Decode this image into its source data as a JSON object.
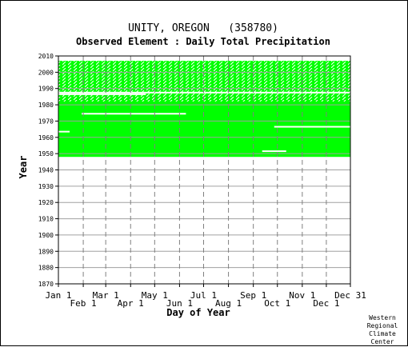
{
  "chart_data": {
    "type": "heatmap",
    "title": "UNITY, OREGON   (358780)",
    "subtitle": "Observed Element : Daily Total Precipitation",
    "xlabel": "Day of Year",
    "ylabel": "Year",
    "xlim": [
      1,
      365
    ],
    "ylim": [
      1870,
      2010
    ],
    "x_ticks_upper": [
      {
        "label": "Jan 1",
        "day": 1
      },
      {
        "label": "Mar 1",
        "day": 60
      },
      {
        "label": "May 1",
        "day": 121
      },
      {
        "label": "Jul 1",
        "day": 182
      },
      {
        "label": "Sep 1",
        "day": 244
      },
      {
        "label": "Nov 1",
        "day": 305
      },
      {
        "label": "Dec 31",
        "day": 365
      }
    ],
    "x_ticks_lower": [
      {
        "label": "Feb 1",
        "day": 32
      },
      {
        "label": "Apr 1",
        "day": 91
      },
      {
        "label": "Jun 1",
        "day": 152
      },
      {
        "label": "Aug 1",
        "day": 213
      },
      {
        "label": "Oct 1",
        "day": 274
      },
      {
        "label": "Dec 1",
        "day": 335
      }
    ],
    "y_ticks": [
      1870,
      1880,
      1890,
      1900,
      1910,
      1920,
      1930,
      1940,
      1950,
      1960,
      1970,
      1980,
      1990,
      2000,
      2010
    ],
    "grid": true,
    "color_observed": "#00ff00",
    "record_start_year": 1948,
    "record_end_year": 2007,
    "dense_period": [
      1948,
      1982
    ],
    "sparse_period": [
      1982,
      2007
    ],
    "gap_rows": [
      {
        "year": 1987.5,
        "from_day": 1,
        "to_day": 365
      },
      {
        "year": 1986.5,
        "from_day": 1,
        "to_day": 110
      },
      {
        "year": 1974.5,
        "from_day": 30,
        "to_day": 160
      },
      {
        "year": 1966.5,
        "from_day": 270,
        "to_day": 365
      },
      {
        "year": 1963.5,
        "from_day": 1,
        "to_day": 15
      },
      {
        "year": 1951.5,
        "from_day": 255,
        "to_day": 285
      }
    ]
  },
  "credit": [
    "Western",
    "Regional",
    "Climate",
    "Center"
  ]
}
